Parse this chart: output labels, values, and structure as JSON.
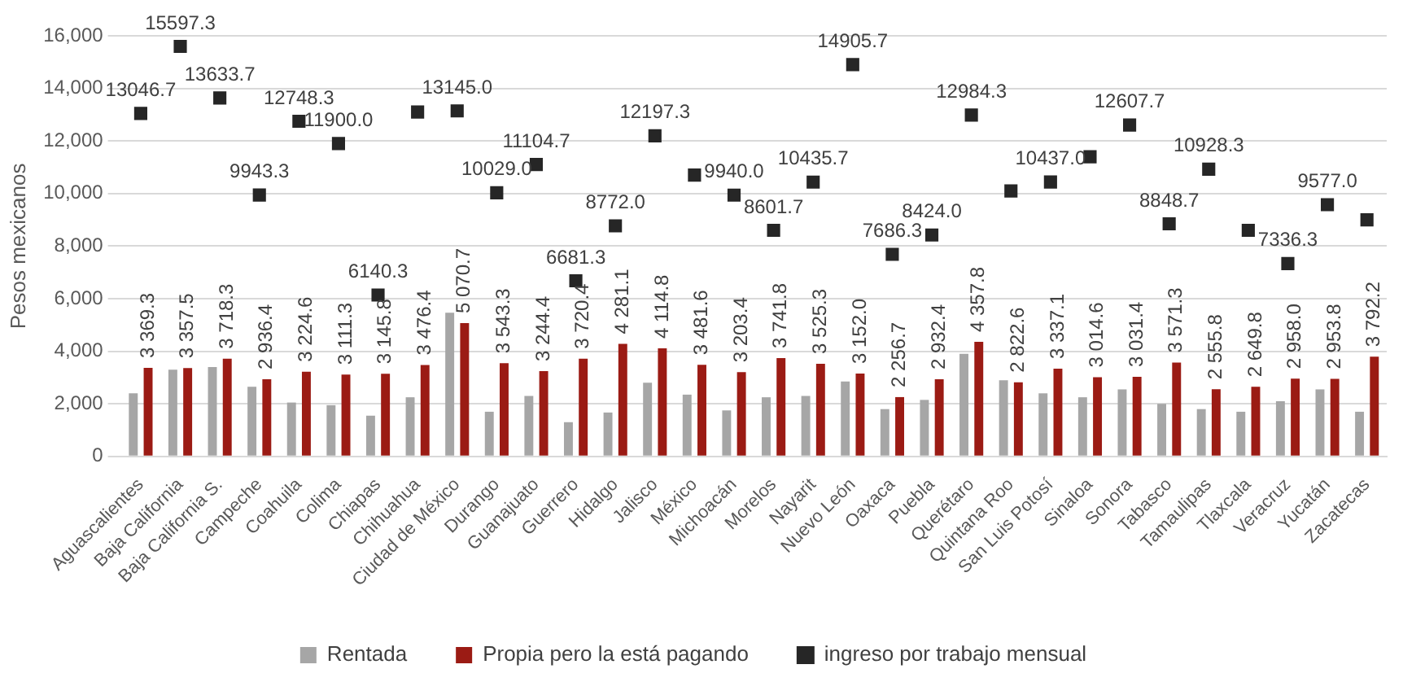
{
  "chart_data": {
    "type": "bar",
    "ylabel": "Pesos mexicanos",
    "categories": [
      "Aguascalientes",
      "Baja California",
      "Baja California S.",
      "Campeche",
      "Coahuila",
      "Colima",
      "Chiapas",
      "Chihuahua",
      "Ciudad de México",
      "Durango",
      "Guanajuato",
      "Guerrero",
      "Hidalgo",
      "Jalisco",
      "México",
      "Michoacán",
      "Morelos",
      "Nayarit",
      "Nuevo León",
      "Oaxaca",
      "Puebla",
      "Querétaro",
      "Quintana Roo",
      "San Luis Potosí",
      "Sinaloa",
      "Sonora",
      "Tabasco",
      "Tamaulipas",
      "Tlaxcala",
      "Veracruz",
      "Yucatán",
      "Zacatecas"
    ],
    "series": [
      {
        "name": "Rentada",
        "color": "#a6a6a6",
        "values": [
          2400,
          3300,
          3400,
          2650,
          2050,
          1950,
          1550,
          2250,
          5470,
          1700,
          2300,
          1300,
          1670,
          2800,
          2350,
          1750,
          2250,
          2300,
          2850,
          1800,
          2150,
          3900,
          2900,
          2400,
          2250,
          2550,
          2000,
          1800,
          1700,
          2100,
          2550,
          1700
        ]
      },
      {
        "name": "Propia pero la está pagando",
        "color": "#9b1b14",
        "values": [
          3369.3,
          3357.5,
          3718.3,
          2936.4,
          3224.6,
          3111.3,
          3145.8,
          3476.4,
          5070.7,
          3543.3,
          3244.4,
          3720.4,
          4281.1,
          4114.8,
          3481.6,
          3203.4,
          3741.8,
          3525.3,
          3152.0,
          2256.7,
          2932.4,
          4357.8,
          2822.6,
          3337.1,
          3014.6,
          3031.4,
          3571.3,
          2555.8,
          2649.8,
          2958.0,
          2953.8,
          3792.2
        ],
        "value_labels": [
          "3 369.3",
          "3 357.5",
          "3 718.3",
          "2 936.4",
          "3 224.6",
          "3 111.3",
          "3 145.8",
          "3 476.4",
          "5 070.7",
          "3 543.3",
          "3 244.4",
          "3 720.4",
          "4 281.1",
          "4 114.8",
          "3 481.6",
          "3 203.4",
          "3 741.8",
          "3 525.3",
          "3 152.0",
          "2 256.7",
          "2 932.4",
          "4 357.8",
          "2 822.6",
          "3 337.1",
          "3 014.6",
          "3 031.4",
          "3 571.3",
          "2 555.8",
          "2 649.8",
          "2 958.0",
          "2 953.8",
          "3 792.2"
        ]
      },
      {
        "name": "ingreso por trabajo mensual",
        "type": "scatter",
        "marker": "square",
        "color": "#262626",
        "values": [
          13046.7,
          15597.3,
          13633.7,
          9943.3,
          12748.3,
          11900.0,
          6140.3,
          13100,
          13145.0,
          10029.0,
          11104.7,
          6681.3,
          8772.0,
          12197.3,
          10700,
          9940.0,
          8601.7,
          10435.7,
          14905.7,
          7686.3,
          8424.0,
          12984.3,
          10100,
          10437.0,
          11400,
          12607.7,
          8848.7,
          10928.3,
          8600,
          7336.3,
          9577.0,
          9000
        ],
        "value_labels": [
          "13046.7",
          "15597.3",
          "13633.7",
          "9943.3",
          "12748.3",
          "11900.0",
          "6140.3",
          null,
          "13145.0",
          "10029.0",
          "11104.7",
          "6681.3",
          "8772.0",
          "12197.3",
          null,
          "9940.0",
          "8601.7",
          "10435.7",
          "14905.7",
          "7686.3",
          "8424.0",
          "12984.3",
          null,
          "10437.0",
          null,
          "12607.7",
          "8848.7",
          "10928.3",
          null,
          "7336.3",
          "9577.0",
          null
        ]
      }
    ],
    "ylim": [
      0,
      16000
    ],
    "yticks": [
      0,
      {
        "value": 2000,
        "label": "2,000"
      },
      {
        "value": 4000,
        "label": "4,000"
      },
      {
        "value": 6000,
        "label": "6,000"
      },
      {
        "value": 8000,
        "label": "8,000"
      },
      {
        "value": 10000,
        "label": "10,000"
      },
      {
        "value": 12000,
        "label": "12,000"
      },
      {
        "value": 14000,
        "label": "14,000"
      },
      {
        "value": 16000,
        "label": "16,000"
      }
    ],
    "grid": "y",
    "legend": "bottom"
  }
}
